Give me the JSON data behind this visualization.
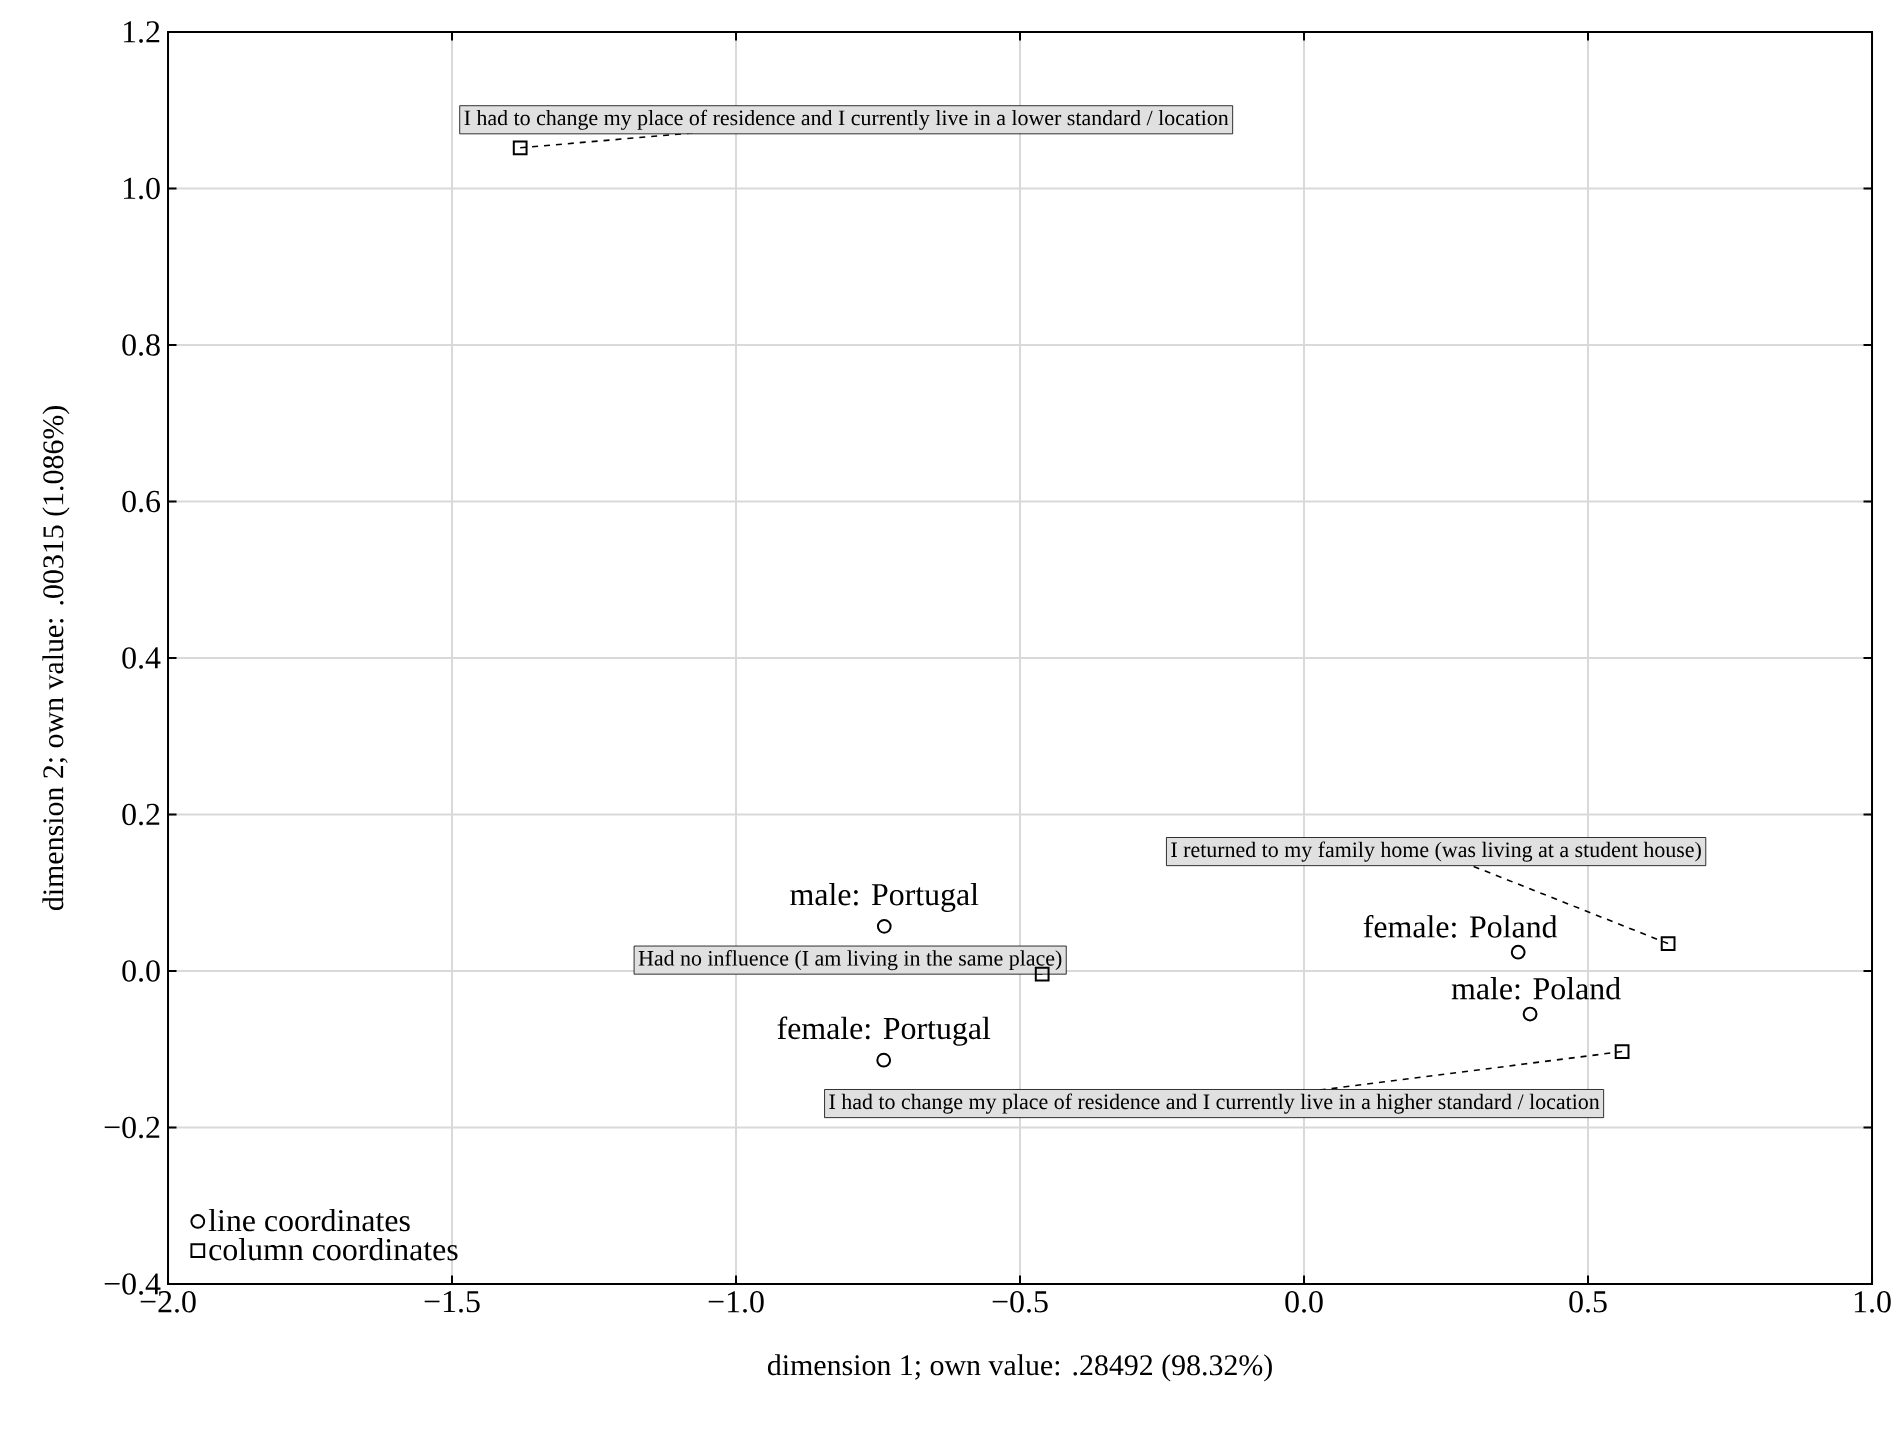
{
  "chart_data": {
    "type": "scatter",
    "xlabel": "dimension 1; own value: .28492 (98.32%)",
    "ylabel": "dimension 2; own value: .00315 (1.086%)",
    "series": [
      {
        "name": "line coordinates",
        "color": "#000000",
        "marker": "circle",
        "x": [
          -0.739,
          -0.74,
          0.377,
          0.398
        ],
        "values": [
          0.057,
          -0.114,
          0.024,
          -0.055
        ]
      },
      {
        "name": "column coordinates",
        "color": "#000000",
        "marker": "square",
        "x": [
          -1.38,
          -0.461,
          0.641,
          0.56
        ],
        "values": [
          1.052,
          -0.004,
          0.035,
          -0.103
        ]
      }
    ],
    "annotations": [
      {
        "text": "male: Portugal",
        "x": -0.739,
        "y": 0.057
      },
      {
        "text": "female: Portugal",
        "x": -0.74,
        "y": -0.114
      },
      {
        "text": "female: Poland",
        "x": 0.377,
        "y": 0.024
      },
      {
        "text": "male: Poland",
        "x": 0.398,
        "y": -0.055
      },
      {
        "text": "I had to change my place of residence and I currently live in a lower standard / location",
        "x": -1.38,
        "y": 1.052
      },
      {
        "text": "Had no influence (I am living in the same place)",
        "x": -0.461,
        "y": -0.004
      },
      {
        "text": "I returned to my family home (was living at a student house)",
        "x": 0.641,
        "y": 0.035
      },
      {
        "text": "I had to change my place of residence and I currently live in a higher standard / location",
        "x": 0.56,
        "y": -0.103
      }
    ],
    "xlim": [
      -2.0,
      1.0
    ],
    "ylim": [
      -0.4,
      1.2
    ],
    "xticks": [
      {
        "value": -2.0,
        "label": "−2.0"
      },
      {
        "value": -1.5,
        "label": "−1.5"
      },
      {
        "value": -1.0,
        "label": "−1.0"
      },
      {
        "value": -0.5,
        "label": "−0.5"
      },
      {
        "value": 0.0,
        "label": "0.0"
      },
      {
        "value": 0.5,
        "label": "0.5"
      },
      {
        "value": 1.0,
        "label": "1.0"
      }
    ],
    "yticks": [
      {
        "value": -0.4,
        "label": "−0.4"
      },
      {
        "value": -0.2,
        "label": "−0.2"
      },
      {
        "value": 0.0,
        "label": "0.0"
      },
      {
        "value": 0.2,
        "label": "0.2"
      },
      {
        "value": 0.4,
        "label": "0.4"
      },
      {
        "value": 0.6,
        "label": "0.6"
      },
      {
        "value": 0.8,
        "label": "0.8"
      },
      {
        "value": 1.0,
        "label": "1.0"
      },
      {
        "value": 1.2,
        "label": "1.2"
      }
    ],
    "grid": true,
    "legend": "bottom left"
  }
}
